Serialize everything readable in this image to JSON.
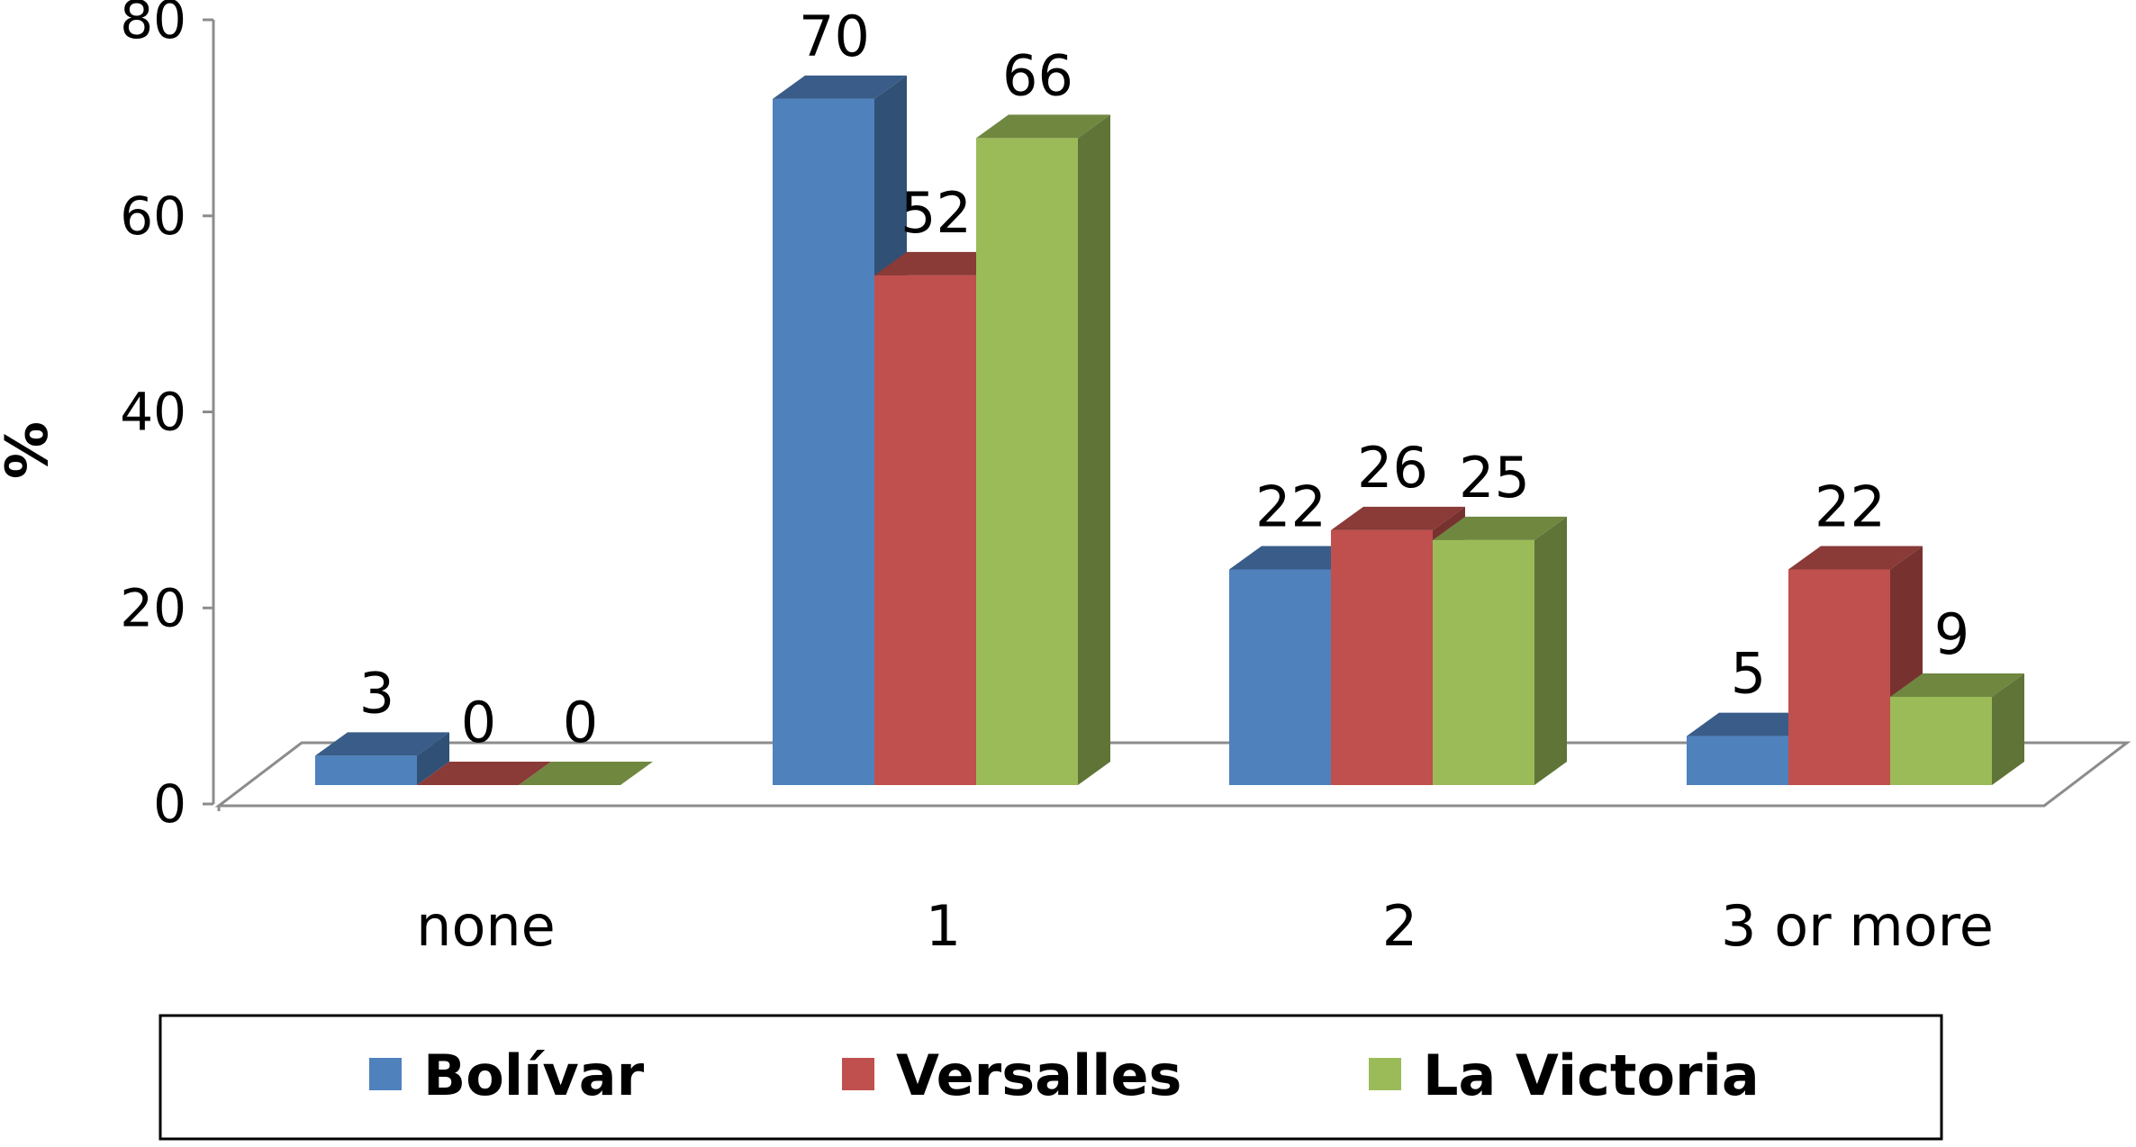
{
  "chart_data": {
    "type": "bar",
    "ylabel": "%",
    "ylim": [
      0,
      80
    ],
    "yticks": [
      "0",
      "20",
      "40",
      "60",
      "80"
    ],
    "categories": [
      "none",
      "1",
      "2",
      "3 or more"
    ],
    "series": [
      {
        "name": "Bolívar",
        "values": [
          3,
          70,
          22,
          5
        ],
        "labels": [
          "3",
          "70",
          "22",
          "5"
        ],
        "color": "#4f81bd"
      },
      {
        "name": "Versalles",
        "values": [
          0,
          52,
          26,
          22
        ],
        "labels": [
          "0",
          "52",
          "26",
          "22"
        ],
        "color": "#c0504d"
      },
      {
        "name": "La Victoria",
        "values": [
          0,
          66,
          25,
          9
        ],
        "labels": [
          "0",
          "66",
          "25",
          "9"
        ],
        "color": "#9bbb59"
      }
    ],
    "legend_position": "bottom",
    "style": "3d-clustered-column"
  }
}
